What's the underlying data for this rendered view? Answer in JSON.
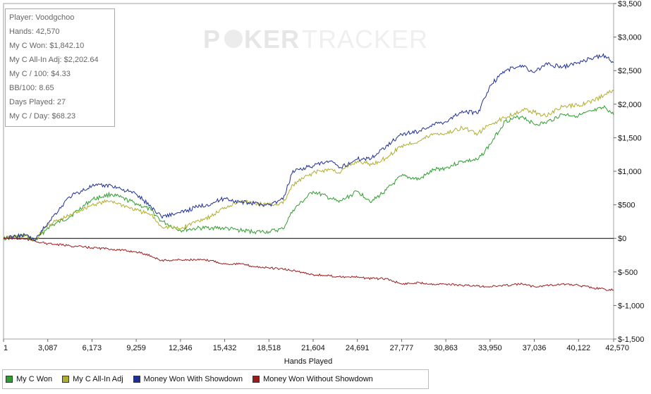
{
  "watermark": {
    "part1": "P",
    "part2": "KER",
    "part3": "TRACKER"
  },
  "stats": {
    "player": "Player: Voodgchoo",
    "hands": "Hands: 42,570",
    "won": "My C Won: $1,842.10",
    "allin_adj": "My C All-In Adj: $2,202.64",
    "per100": "My C / 100: $4.33",
    "bb100": "BB/100: 8.65",
    "days": "Days Played: 27",
    "per_day": "My C / Day: $68.23"
  },
  "colors": {
    "background": "#ffffff",
    "grid": "#e6e6e6",
    "zero_line": "#000000"
  },
  "chart_data": {
    "type": "line",
    "xlabel": "Hands Played",
    "ylabel": "",
    "xlim": [
      1,
      42570
    ],
    "ylim": [
      -1500,
      3500
    ],
    "x_ticks": [
      1,
      3087,
      6173,
      9259,
      12346,
      15432,
      18518,
      21604,
      24691,
      27777,
      30863,
      33950,
      37036,
      40122,
      42570
    ],
    "x_tick_labels": [
      "1",
      "3,087",
      "6,173",
      "9,259",
      "12,346",
      "15,432",
      "18,518",
      "21,604",
      "24,691",
      "27,777",
      "30,863",
      "33,950",
      "37,036",
      "40,122",
      "42,570"
    ],
    "y_ticks": [
      3500,
      3000,
      2500,
      2000,
      1500,
      1000,
      500,
      0,
      -500,
      -1000,
      -1500
    ],
    "y_tick_labels": [
      "$3,500",
      "$3,000",
      "$2,500",
      "$2,000",
      "$1,500",
      "$1,000",
      "$500",
      "$0",
      "$-500",
      "$-1,000",
      "$-1,500"
    ],
    "grid": false,
    "legend_position": "bottom",
    "x": [
      1,
      1500,
      2200,
      3087,
      4600,
      6173,
      7500,
      9259,
      10300,
      11000,
      12346,
      13500,
      14500,
      15432,
      16500,
      17500,
      18518,
      19500,
      20200,
      21604,
      22800,
      23400,
      24691,
      25700,
      26700,
      27777,
      29000,
      30000,
      30863,
      32000,
      33100,
      33950,
      35000,
      36200,
      37036,
      37800,
      39000,
      40122,
      41200,
      42000,
      42570
    ],
    "series": [
      {
        "name": "My C Won",
        "color": "#2e9e2e",
        "values": [
          0,
          40,
          -40,
          160,
          320,
          580,
          660,
          520,
          420,
          260,
          120,
          150,
          160,
          150,
          120,
          100,
          100,
          140,
          420,
          700,
          600,
          540,
          700,
          550,
          720,
          930,
          880,
          1020,
          1050,
          1150,
          1170,
          1400,
          1750,
          1820,
          1700,
          1720,
          1850,
          1830,
          1900,
          1950,
          1840
        ]
      },
      {
        "name": "My C All-In Adj",
        "color": "#b0ae2e",
        "values": [
          0,
          40,
          -30,
          200,
          340,
          500,
          560,
          420,
          350,
          180,
          140,
          260,
          330,
          460,
          560,
          520,
          500,
          520,
          800,
          980,
          1030,
          980,
          1150,
          1100,
          1200,
          1380,
          1450,
          1560,
          1560,
          1650,
          1560,
          1700,
          1800,
          1920,
          1880,
          1830,
          1960,
          1990,
          2050,
          2150,
          2200
        ]
      },
      {
        "name": "Money Won With Showdown",
        "color": "#1f2f9a",
        "values": [
          0,
          50,
          -30,
          230,
          620,
          780,
          790,
          660,
          470,
          330,
          380,
          470,
          520,
          600,
          540,
          520,
          500,
          580,
          1010,
          1080,
          1150,
          1050,
          1180,
          1200,
          1380,
          1550,
          1600,
          1700,
          1740,
          1900,
          1860,
          2280,
          2500,
          2580,
          2470,
          2600,
          2550,
          2620,
          2700,
          2720,
          2620
        ]
      },
      {
        "name": "Money Won Without Showdown",
        "color": "#9e1b1b",
        "values": [
          0,
          -10,
          -40,
          -80,
          -110,
          -140,
          -160,
          -200,
          -260,
          -330,
          -320,
          -320,
          -330,
          -380,
          -380,
          -420,
          -440,
          -460,
          -480,
          -540,
          -560,
          -570,
          -580,
          -600,
          -600,
          -680,
          -660,
          -680,
          -680,
          -700,
          -710,
          -720,
          -700,
          -680,
          -720,
          -700,
          -680,
          -700,
          -740,
          -760,
          -770
        ]
      }
    ]
  }
}
